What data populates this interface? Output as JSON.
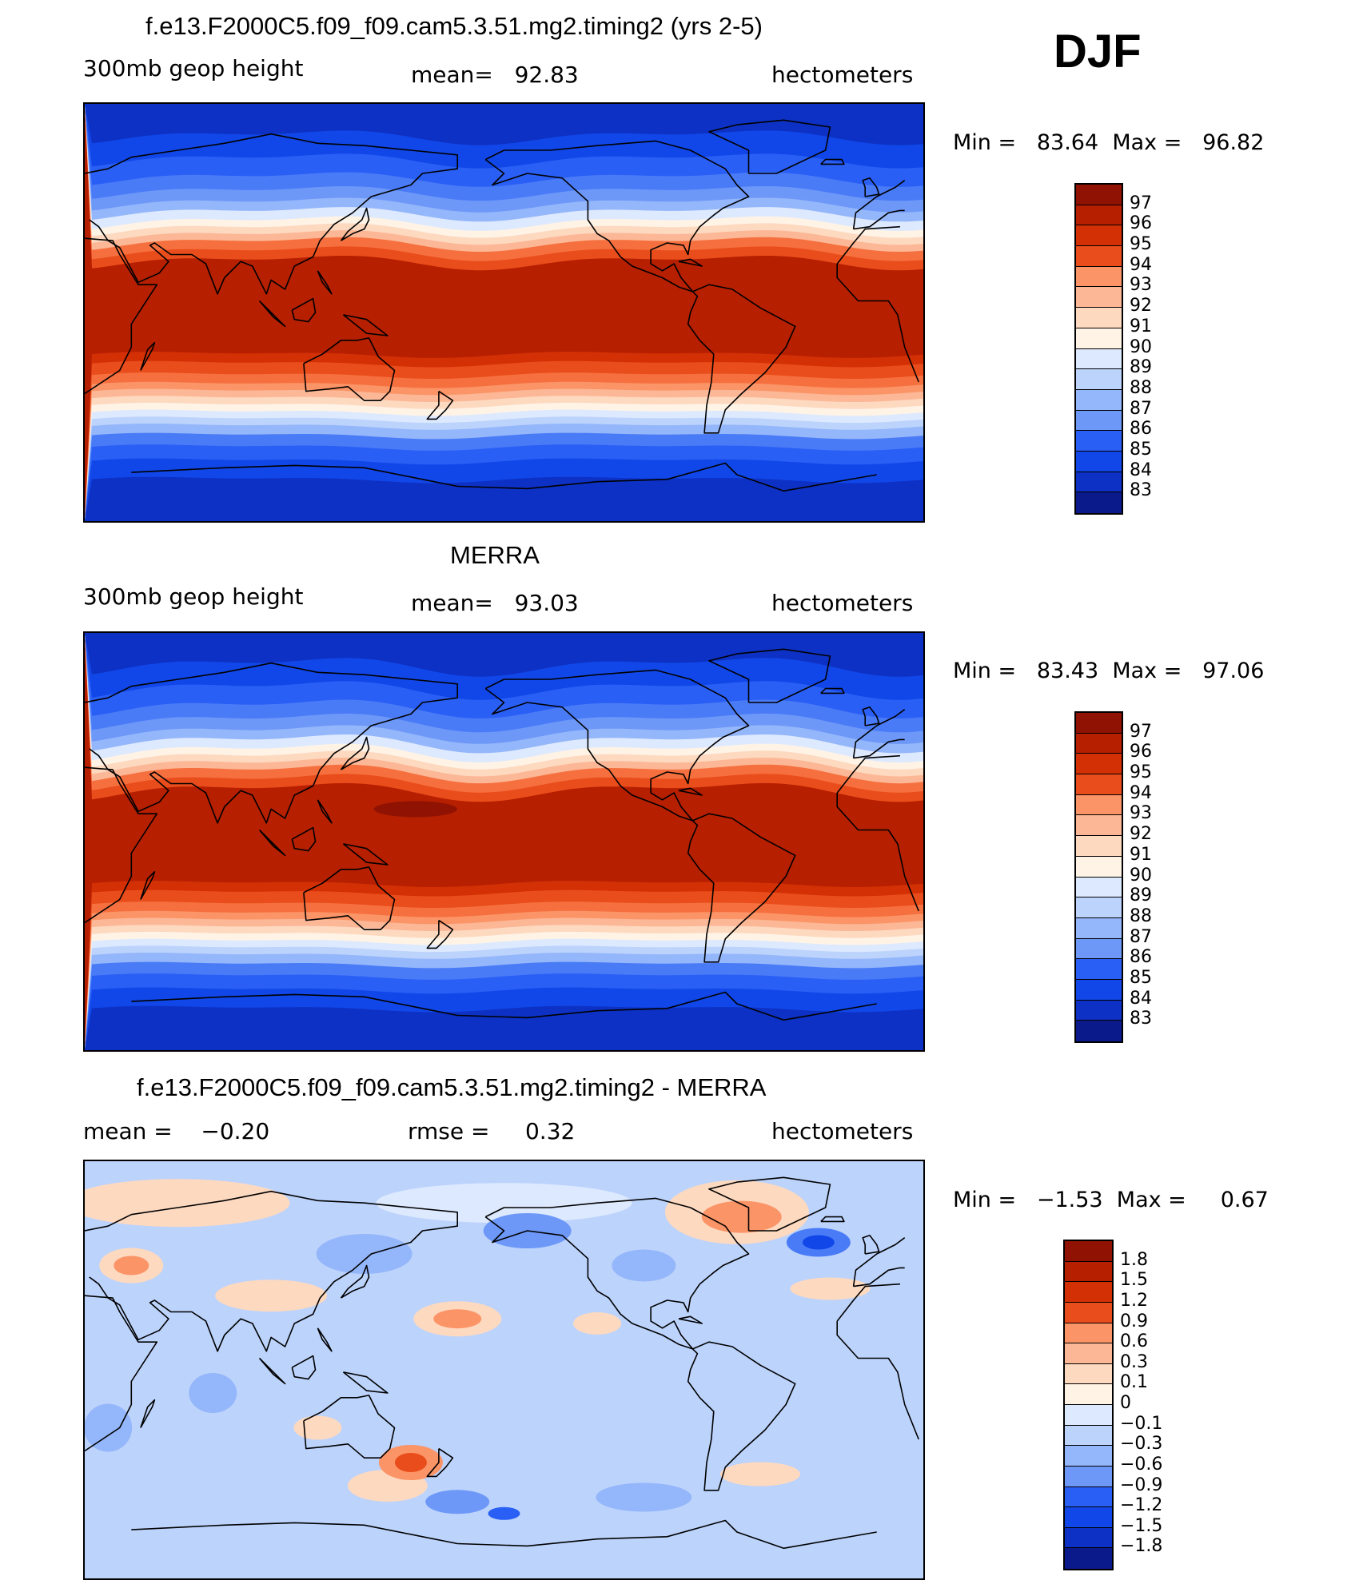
{
  "season": "DJF",
  "palette": {
    "main": [
      "#0a1a8a",
      "#0d31c4",
      "#1147e8",
      "#2a5ff5",
      "#4a7bf7",
      "#6d98f8",
      "#94b6fa",
      "#bcd3fc",
      "#dde9fe",
      "#fff3e6",
      "#fdd9c0",
      "#fcb796",
      "#fb9467",
      "#f6703f",
      "#ea4d1c",
      "#d33006",
      "#b61f00",
      "#8f1203"
    ],
    "diff": [
      "#0a1a8a",
      "#0d31c4",
      "#1147e8",
      "#2a5ff5",
      "#4a7bf7",
      "#6d98f8",
      "#94b6fa",
      "#bcd3fc",
      "#dde9fe",
      "#fff3e6",
      "#fdd9c0",
      "#fcb796",
      "#fb9467",
      "#f6703f",
      "#ea4d1c",
      "#d33006",
      "#b61f00",
      "#8f1203"
    ],
    "coast": "#000000"
  },
  "panels": [
    {
      "title": "f.e13.F2000C5.f09_f09.cam5.3.51.mg2.timing2 (yrs 2-5)",
      "left_label": "300mb geop height",
      "center_label": "mean=   92.83",
      "right_label": "hectometers",
      "min_max": "Min =   83.64  Max =   96.82",
      "colorbar_labels": [
        "97",
        "96",
        "95",
        "94",
        "93",
        "92",
        "91",
        "90",
        "89",
        "88",
        "87",
        "86",
        "85",
        "84",
        "83"
      ],
      "field": "model"
    },
    {
      "title": "MERRA",
      "left_label": "300mb geop height",
      "center_label": "mean=   93.03",
      "right_label": "hectometers",
      "min_max": "Min =   83.43  Max =   97.06",
      "colorbar_labels": [
        "97",
        "96",
        "95",
        "94",
        "93",
        "92",
        "91",
        "90",
        "89",
        "88",
        "87",
        "86",
        "85",
        "84",
        "83"
      ],
      "field": "obs"
    },
    {
      "title": "f.e13.F2000C5.f09_f09.cam5.3.51.mg2.timing2 - MERRA",
      "left_label": "mean =    −0.20",
      "center_label": "rmse =     0.32",
      "right_label": "hectometers",
      "min_max": "Min =   −1.53  Max =     0.67",
      "colorbar_labels": [
        "1.8",
        "1.5",
        "1.2",
        "0.9",
        "0.6",
        "0.3",
        "0.1",
        "0",
        "−0.1",
        "−0.3",
        "−0.6",
        "−0.9",
        "−1.2",
        "−1.5",
        "−1.8"
      ],
      "field": "diff"
    }
  ]
}
